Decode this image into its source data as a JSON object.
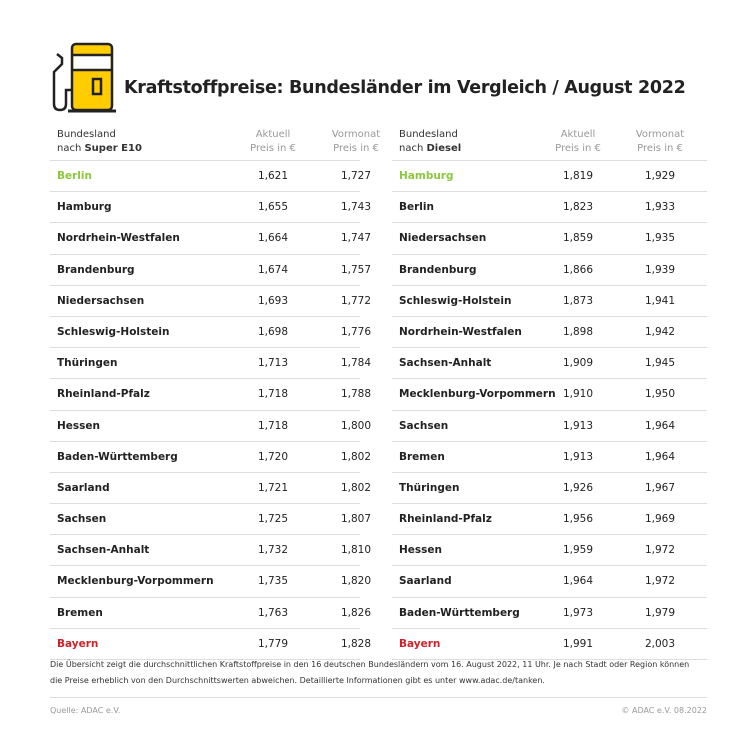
{
  "title": "Kraftstoffpreise: Bundesländer im Vergleich / August 2022",
  "colors": {
    "accent": "#ffcc00",
    "cheapest": "#8dc63f",
    "most_expensive": "#d0202a"
  },
  "icon": "fuel-pump-icon",
  "tables": [
    {
      "header": {
        "col1_line1": "Bundesland",
        "col1_prefix": "nach ",
        "col1_fuel": "Super E10",
        "col2_line1": "Aktuell",
        "col2_line2": "Preis in €",
        "col3_line1": "Vormonat",
        "col3_line2": "Preis in €"
      },
      "rows": [
        {
          "name": "Berlin",
          "aktuell": "1,621",
          "vormonat": "1,727",
          "highlight": "green"
        },
        {
          "name": "Hamburg",
          "aktuell": "1,655",
          "vormonat": "1,743"
        },
        {
          "name": "Nordrhein-Westfalen",
          "aktuell": "1,664",
          "vormonat": "1,747"
        },
        {
          "name": "Brandenburg",
          "aktuell": "1,674",
          "vormonat": "1,757"
        },
        {
          "name": "Niedersachsen",
          "aktuell": "1,693",
          "vormonat": "1,772"
        },
        {
          "name": "Schleswig-Holstein",
          "aktuell": "1,698",
          "vormonat": "1,776"
        },
        {
          "name": "Thüringen",
          "aktuell": "1,713",
          "vormonat": "1,784"
        },
        {
          "name": "Rheinland-Pfalz",
          "aktuell": "1,718",
          "vormonat": "1,788"
        },
        {
          "name": "Hessen",
          "aktuell": "1,718",
          "vormonat": "1,800"
        },
        {
          "name": "Baden-Württemberg",
          "aktuell": "1,720",
          "vormonat": "1,802"
        },
        {
          "name": "Saarland",
          "aktuell": "1,721",
          "vormonat": "1,802"
        },
        {
          "name": "Sachsen",
          "aktuell": "1,725",
          "vormonat": "1,807"
        },
        {
          "name": "Sachsen-Anhalt",
          "aktuell": "1,732",
          "vormonat": "1,810"
        },
        {
          "name": "Mecklenburg-Vorpommern",
          "aktuell": "1,735",
          "vormonat": "1,820"
        },
        {
          "name": "Bremen",
          "aktuell": "1,763",
          "vormonat": "1,826"
        },
        {
          "name": "Bayern",
          "aktuell": "1,779",
          "vormonat": "1,828",
          "highlight": "red"
        }
      ]
    },
    {
      "header": {
        "col1_line1": "Bundesland",
        "col1_prefix": "nach ",
        "col1_fuel": "Diesel",
        "col2_line1": "Aktuell",
        "col2_line2": "Preis in €",
        "col3_line1": "Vormonat",
        "col3_line2": "Preis in €"
      },
      "rows": [
        {
          "name": "Hamburg",
          "aktuell": "1,819",
          "vormonat": "1,929",
          "highlight": "green"
        },
        {
          "name": "Berlin",
          "aktuell": "1,823",
          "vormonat": "1,933"
        },
        {
          "name": "Niedersachsen",
          "aktuell": "1,859",
          "vormonat": "1,935"
        },
        {
          "name": "Brandenburg",
          "aktuell": "1,866",
          "vormonat": "1,939"
        },
        {
          "name": "Schleswig-Holstein",
          "aktuell": "1,873",
          "vormonat": "1,941"
        },
        {
          "name": "Nordrhein-Westfalen",
          "aktuell": "1,898",
          "vormonat": "1,942"
        },
        {
          "name": "Sachsen-Anhalt",
          "aktuell": "1,909",
          "vormonat": "1,945"
        },
        {
          "name": "Mecklenburg-Vorpommern",
          "aktuell": "1,910",
          "vormonat": "1,950"
        },
        {
          "name": "Sachsen",
          "aktuell": "1,913",
          "vormonat": "1,964"
        },
        {
          "name": "Bremen",
          "aktuell": "1,913",
          "vormonat": "1,964"
        },
        {
          "name": "Thüringen",
          "aktuell": "1,926",
          "vormonat": "1,967"
        },
        {
          "name": "Rheinland-Pfalz",
          "aktuell": "1,956",
          "vormonat": "1,969"
        },
        {
          "name": "Hessen",
          "aktuell": "1,959",
          "vormonat": "1,972"
        },
        {
          "name": "Saarland",
          "aktuell": "1,964",
          "vormonat": "1,972"
        },
        {
          "name": "Baden-Württemberg",
          "aktuell": "1,973",
          "vormonat": "1,979"
        },
        {
          "name": "Bayern",
          "aktuell": "1,991",
          "vormonat": "2,003",
          "highlight": "red"
        }
      ]
    }
  ],
  "footnote": "Die Übersicht zeigt die durchschnittlichen Kraftstoffpreise in den 16 deutschen Bundesländern vom 16. August 2022, 11 Uhr. Je nach Stadt oder Region können die Preise erheblich von den Durchschnittswerten abweichen. Detaillierte Informationen gibt es unter www.adac.de/tanken.",
  "source": "Quelle: ADAC e.V.",
  "copyright": "© ADAC e.V. 08.2022"
}
